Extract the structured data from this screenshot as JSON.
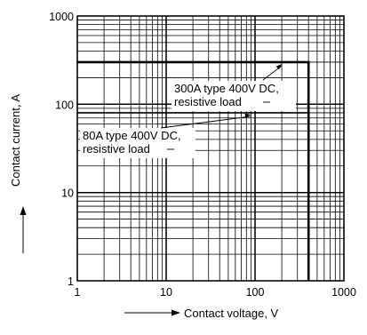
{
  "chart_data": {
    "type": "line",
    "x_scale": "log",
    "y_scale": "log",
    "xlim": [
      1,
      1000
    ],
    "ylim": [
      1,
      1000
    ],
    "x_ticks": [
      "1",
      "10",
      "100",
      "1000"
    ],
    "y_ticks": [
      "1",
      "10",
      "100",
      "1000"
    ],
    "xlabel": "Contact voltage, V",
    "ylabel": "Contact current, A",
    "grid": true,
    "series": [
      {
        "x": [
          1,
          400,
          400
        ],
        "y": [
          300,
          300,
          1
        ],
        "line_weight": "heavy"
      },
      {
        "x": [
          1,
          400,
          400
        ],
        "y": [
          80,
          80,
          1
        ],
        "line_weight": "light"
      }
    ],
    "annotations": [
      {
        "lines": [
          "300A type 400V DC,",
          "resistive load"
        ],
        "arrow_to": {
          "x": 200,
          "y": 300
        }
      },
      {
        "lines": [
          "80A type 400V DC,",
          "resistive load"
        ],
        "arrow_to": {
          "x": 90,
          "y": 80
        }
      }
    ]
  }
}
